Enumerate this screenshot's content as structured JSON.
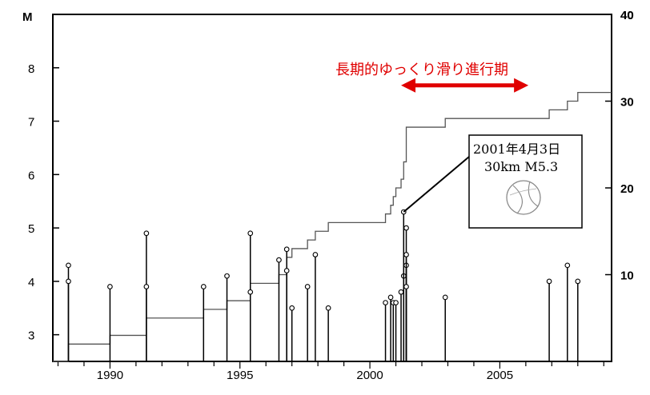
{
  "chart_data": {
    "type": "line",
    "left_axis": {
      "label": "M",
      "ylim": [
        2.5,
        9
      ],
      "ticks": [
        "3",
        "4",
        "5",
        "6",
        "7",
        "8"
      ]
    },
    "right_axis": {
      "label": "40",
      "ylim": [
        0,
        40
      ],
      "ticks": [
        "10",
        "20",
        "30",
        "40"
      ]
    },
    "x_axis": {
      "xlim": [
        1987.8,
        2009.3
      ],
      "ticks": [
        "1990",
        "1995",
        "2000",
        "2005"
      ]
    },
    "events": [
      {
        "year": 1988.4,
        "magnitude": 4.3
      },
      {
        "year": 1988.4,
        "magnitude": 4.0
      },
      {
        "year": 1990.0,
        "magnitude": 3.9
      },
      {
        "year": 1991.4,
        "magnitude": 4.9
      },
      {
        "year": 1991.4,
        "magnitude": 3.9
      },
      {
        "year": 1993.6,
        "magnitude": 3.9
      },
      {
        "year": 1994.5,
        "magnitude": 4.1
      },
      {
        "year": 1995.4,
        "magnitude": 4.9
      },
      {
        "year": 1995.4,
        "magnitude": 3.8
      },
      {
        "year": 1996.5,
        "magnitude": 4.4
      },
      {
        "year": 1996.8,
        "magnitude": 4.6
      },
      {
        "year": 1996.8,
        "magnitude": 4.2
      },
      {
        "year": 1997.0,
        "magnitude": 3.5
      },
      {
        "year": 1997.6,
        "magnitude": 3.9
      },
      {
        "year": 1997.9,
        "magnitude": 4.5
      },
      {
        "year": 1998.4,
        "magnitude": 3.5
      },
      {
        "year": 2000.6,
        "magnitude": 3.6
      },
      {
        "year": 2000.8,
        "magnitude": 3.7
      },
      {
        "year": 2000.9,
        "magnitude": 3.6
      },
      {
        "year": 2001.0,
        "magnitude": 3.6
      },
      {
        "year": 2001.2,
        "magnitude": 3.8
      },
      {
        "year": 2001.3,
        "magnitude": 4.1
      },
      {
        "year": 2001.3,
        "magnitude": 5.3
      },
      {
        "year": 2001.4,
        "magnitude": 5.0
      },
      {
        "year": 2001.4,
        "magnitude": 4.3
      },
      {
        "year": 2001.4,
        "magnitude": 4.5
      },
      {
        "year": 2001.4,
        "magnitude": 3.9
      },
      {
        "year": 2002.9,
        "magnitude": 3.7
      },
      {
        "year": 2006.9,
        "magnitude": 4.0
      },
      {
        "year": 2007.6,
        "magnitude": 4.3
      },
      {
        "year": 2008.0,
        "magnitude": 4.0
      }
    ],
    "cumulative": [
      {
        "year": 1987.8,
        "count": 0
      },
      {
        "year": 1988.4,
        "count": 2
      },
      {
        "year": 1990.0,
        "count": 3
      },
      {
        "year": 1991.4,
        "count": 5
      },
      {
        "year": 1993.6,
        "count": 6
      },
      {
        "year": 1994.5,
        "count": 7
      },
      {
        "year": 1995.4,
        "count": 9
      },
      {
        "year": 1996.5,
        "count": 10
      },
      {
        "year": 1996.8,
        "count": 12
      },
      {
        "year": 1997.0,
        "count": 13
      },
      {
        "year": 1997.6,
        "count": 14
      },
      {
        "year": 1997.9,
        "count": 15
      },
      {
        "year": 1998.4,
        "count": 16
      },
      {
        "year": 2000.6,
        "count": 17
      },
      {
        "year": 2000.8,
        "count": 18
      },
      {
        "year": 2000.9,
        "count": 19
      },
      {
        "year": 2001.0,
        "count": 20
      },
      {
        "year": 2001.2,
        "count": 21
      },
      {
        "year": 2001.3,
        "count": 23
      },
      {
        "year": 2001.4,
        "count": 27
      },
      {
        "year": 2002.9,
        "count": 28
      },
      {
        "year": 2006.9,
        "count": 29
      },
      {
        "year": 2007.6,
        "count": 30
      },
      {
        "year": 2008.0,
        "count": 31
      },
      {
        "year": 2009.3,
        "count": 31
      }
    ],
    "annotation": {
      "text": "長期的ゆっくり滑り進行期",
      "start": 2001.2,
      "end": 2006.1,
      "level": 8.0,
      "color": "#e00000"
    },
    "callout": {
      "line1": "2001年4月3日",
      "line2": "30km  M5.3",
      "year": 2001.3,
      "magnitude": 5.3
    }
  }
}
